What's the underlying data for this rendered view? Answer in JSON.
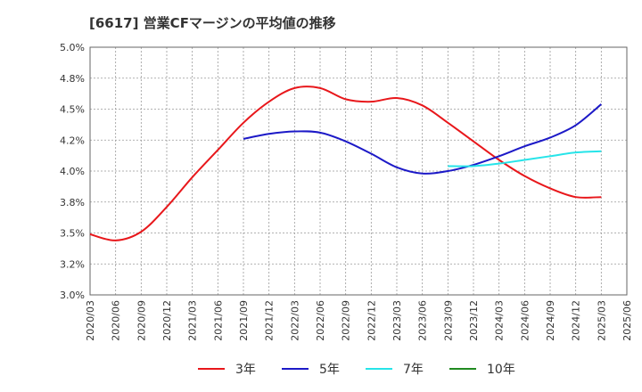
{
  "chart_data": {
    "type": "line",
    "title": "[6617]  営業CFマージンの平均値の推移",
    "x": [
      "2020/03",
      "2020/06",
      "2020/09",
      "2020/12",
      "2021/03",
      "2021/06",
      "2021/09",
      "2021/12",
      "2022/03",
      "2022/06",
      "2022/09",
      "2022/12",
      "2023/03",
      "2023/06",
      "2023/09",
      "2023/12",
      "2024/03",
      "2024/06",
      "2024/09",
      "2024/12",
      "2025/03",
      "2025/06"
    ],
    "ylim": [
      3.0,
      5.0
    ],
    "yticks": [
      "5.0%",
      "4.8%",
      "4.5%",
      "4.2%",
      "4.0%",
      "3.8%",
      "3.5%",
      "3.2%",
      "3.0%"
    ],
    "grid": true,
    "legend_position": "bottom",
    "series": [
      {
        "name": "3年",
        "color": "#e8171b",
        "values": [
          3.49,
          3.44,
          3.51,
          3.71,
          3.95,
          4.17,
          4.39,
          4.56,
          4.67,
          4.67,
          4.58,
          4.56,
          4.59,
          4.53,
          4.39,
          4.24,
          4.09,
          3.96,
          3.86,
          3.79,
          3.79,
          null
        ]
      },
      {
        "name": "5年",
        "color": "#1c19c7",
        "values": [
          null,
          null,
          null,
          null,
          null,
          null,
          4.26,
          4.3,
          4.32,
          4.31,
          4.24,
          4.14,
          4.03,
          3.98,
          4.0,
          4.05,
          4.12,
          4.2,
          4.27,
          4.37,
          4.54,
          null
        ]
      },
      {
        "name": "7年",
        "color": "#26e4e9",
        "values": [
          null,
          null,
          null,
          null,
          null,
          null,
          null,
          null,
          null,
          null,
          null,
          null,
          null,
          null,
          4.04,
          4.04,
          4.06,
          4.09,
          4.12,
          4.15,
          4.16,
          null
        ]
      },
      {
        "name": "10年",
        "color": "#208a20",
        "values": [
          null,
          null,
          null,
          null,
          null,
          null,
          null,
          null,
          null,
          null,
          null,
          null,
          null,
          null,
          null,
          null,
          null,
          null,
          null,
          null,
          null,
          null
        ]
      }
    ]
  }
}
